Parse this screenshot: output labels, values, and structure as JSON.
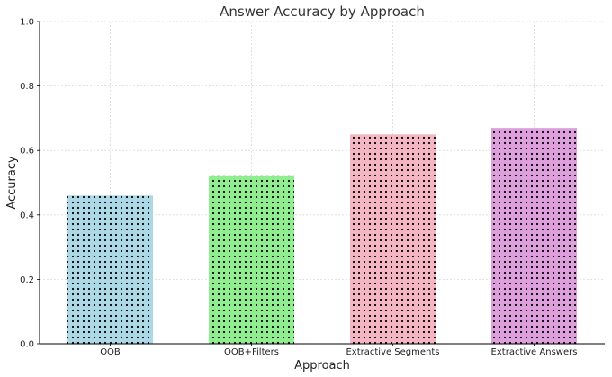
{
  "chart_data": {
    "type": "bar",
    "title": "Answer Accuracy by Approach",
    "xlabel": "Approach",
    "ylabel": "Accuracy",
    "categories": [
      "OOB",
      "OOB+Filters",
      "Extractive Segments",
      "Extractive Answers"
    ],
    "values": [
      0.46,
      0.52,
      0.65,
      0.67
    ],
    "colors": [
      "#add8e6",
      "#90ee90",
      "#f4b6c2",
      "#dda0dd"
    ],
    "pattern": "dots",
    "ylim": [
      0,
      1.0
    ],
    "yticks": [
      "0.0",
      "0.2",
      "0.4",
      "0.6",
      "0.8",
      "1.0"
    ],
    "grid": true,
    "legend": "none"
  }
}
